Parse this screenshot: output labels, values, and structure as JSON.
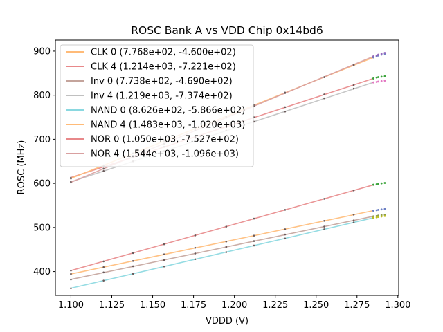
{
  "chart_data": {
    "type": "line",
    "title": "ROSC Bank A vs VDD Chip 0x14bd6",
    "xlabel": "VDDD (V)",
    "ylabel": "ROSC (MHz)",
    "xlim": [
      1.0905,
      1.3005
    ],
    "ylim": [
      346,
      925
    ],
    "xticks": [
      "1.100",
      "1.125",
      "1.150",
      "1.175",
      "1.200",
      "1.225",
      "1.250",
      "1.275",
      "1.300"
    ],
    "xtick_values": [
      1.1,
      1.125,
      1.15,
      1.175,
      1.2,
      1.225,
      1.25,
      1.275,
      1.3
    ],
    "yticks": [
      "400",
      "500",
      "600",
      "700",
      "800",
      "900"
    ],
    "ytick_values": [
      400,
      500,
      600,
      700,
      800,
      900
    ],
    "legend_position": "top-left",
    "series": [
      {
        "name": "CLK 0 (7.768e+02, -4.600e+02)",
        "color": "#ffbb78",
        "slope": 776.8,
        "intercept": -460.0,
        "x": [
          1.1,
          1.12,
          1.138,
          1.157,
          1.176,
          1.195,
          1.212,
          1.231,
          1.255,
          1.273,
          1.285
        ],
        "values": [
          394.5,
          410,
          424,
          439,
          454,
          468,
          481.5,
          496,
          515,
          529,
          538.2
        ],
        "cluster_x": [
          1.285,
          1.287,
          1.288,
          1.29,
          1.292
        ],
        "cluster_values": [
          538,
          539,
          540,
          541,
          542
        ],
        "cluster_color": "#6b7fc4"
      },
      {
        "name": "CLK 4 (1.214e+03, -7.221e+02)",
        "color": "#e8888a",
        "slope": 1214,
        "intercept": -722.1,
        "x": [
          1.1,
          1.12,
          1.138,
          1.157,
          1.176,
          1.195,
          1.212,
          1.231,
          1.255,
          1.273,
          1.285
        ],
        "values": [
          613,
          638,
          660,
          683,
          706,
          729,
          750,
          773,
          802,
          823,
          837.9
        ],
        "cluster_x": [
          1.285,
          1.287,
          1.288,
          1.29,
          1.292
        ],
        "cluster_values": [
          838,
          840,
          841,
          842,
          843
        ],
        "cluster_color": "#3aa33a"
      },
      {
        "name": "Inv 0 (7.738e+02, -4.690e+02)",
        "color": "#c4a49c",
        "slope": 773.8,
        "intercept": -469.0,
        "x": [
          1.1,
          1.12,
          1.138,
          1.157,
          1.176,
          1.195,
          1.212,
          1.231,
          1.255,
          1.273,
          1.285
        ],
        "values": [
          382,
          398,
          412,
          426,
          441,
          456,
          469,
          484,
          502,
          516,
          525.3
        ],
        "cluster_x": [
          1.285,
          1.287,
          1.288,
          1.29,
          1.292
        ],
        "cluster_values": [
          525,
          526,
          527,
          528,
          529
        ],
        "cluster_color": "#8a9a4a"
      },
      {
        "name": "Inv 4 (1.219e+03, -7.374e+02)",
        "color": "#c0c0c0",
        "slope": 1219,
        "intercept": -737.4,
        "x": [
          1.1,
          1.12,
          1.138,
          1.157,
          1.176,
          1.195,
          1.212,
          1.231,
          1.255,
          1.273,
          1.285
        ],
        "values": [
          604,
          628,
          650,
          673,
          696,
          720,
          740,
          763,
          793,
          815,
          829.0
        ],
        "cluster_x": [
          1.285,
          1.287,
          1.288,
          1.29,
          1.292
        ],
        "cluster_values": [
          829,
          830,
          831,
          832,
          833
        ],
        "cluster_color": "#e377c2"
      },
      {
        "name": "NAND 0 (8.626e+02, -5.866e+02)",
        "color": "#8ad8e0",
        "slope": 862.6,
        "intercept": -586.6,
        "x": [
          1.1,
          1.12,
          1.138,
          1.157,
          1.176,
          1.195,
          1.212,
          1.231,
          1.255,
          1.273,
          1.285
        ],
        "values": [
          362,
          379.5,
          395,
          411.5,
          428,
          444,
          459,
          475,
          496,
          511.5,
          521.9
        ],
        "cluster_x": [
          1.285,
          1.287,
          1.288,
          1.29,
          1.292
        ],
        "cluster_values": [
          522,
          523,
          524,
          525,
          526
        ],
        "cluster_color": "#bcbd22"
      },
      {
        "name": "NAND 4 (1.483e+03, -1.020e+03)",
        "color": "#ffbb78",
        "slope": 1483,
        "intercept": -1020,
        "x": [
          1.1,
          1.12,
          1.138,
          1.157,
          1.176,
          1.195,
          1.212,
          1.231,
          1.255,
          1.273,
          1.285
        ],
        "values": [
          611,
          641,
          668,
          696,
          724,
          752,
          777,
          806,
          841,
          868,
          885.7
        ],
        "cluster_x": [
          1.285,
          1.287,
          1.288,
          1.29,
          1.292
        ],
        "cluster_values": [
          886,
          888,
          890,
          892,
          894
        ],
        "cluster_color": "#6b7fc4"
      },
      {
        "name": "NOR 0 (1.050e+03, -7.527e+02)",
        "color": "#e8888a",
        "slope": 1050,
        "intercept": -752.7,
        "x": [
          1.1,
          1.12,
          1.138,
          1.157,
          1.176,
          1.195,
          1.212,
          1.231,
          1.255,
          1.273,
          1.285
        ],
        "values": [
          402.3,
          423,
          442,
          462,
          482,
          502,
          520,
          540,
          565,
          584,
          596.6
        ],
        "cluster_x": [
          1.285,
          1.287,
          1.288,
          1.29,
          1.292
        ],
        "cluster_values": [
          597,
          598,
          599,
          600,
          601
        ],
        "cluster_color": "#3aa33a"
      },
      {
        "name": "NOR 4 (1.544e+03, -1.096e+03)",
        "color": "#d9a0a0",
        "slope": 1544,
        "intercept": -1096,
        "x": [
          1.1,
          1.12,
          1.138,
          1.157,
          1.176,
          1.195,
          1.212,
          1.231,
          1.255,
          1.273,
          1.285
        ],
        "values": [
          602,
          633,
          661,
          690,
          720,
          749,
          775,
          805,
          841,
          869,
          888
        ],
        "cluster_x": [
          1.285,
          1.287,
          1.288,
          1.29,
          1.292
        ],
        "cluster_values": [
          888,
          890,
          892,
          894,
          896
        ],
        "cluster_color": "#9467bd"
      }
    ]
  }
}
